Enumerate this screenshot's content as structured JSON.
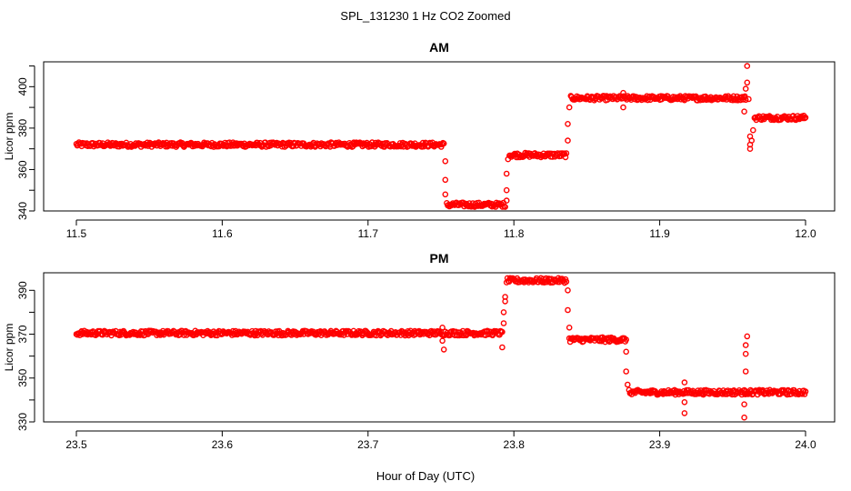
{
  "figure": {
    "title": "SPL_131230  1 Hz CO2 Zoomed",
    "xlabel": "Hour of Day (UTC)",
    "marker_color": "#ff0000"
  },
  "chart_data": [
    {
      "type": "scatter",
      "title": "AM",
      "ylabel": "Licor ppm",
      "xlabel": "Hour of Day (UTC)",
      "xlim": [
        11.5,
        12.0
      ],
      "ylim": [
        340,
        412
      ],
      "xticks": [
        "11.5",
        "11.6",
        "11.7",
        "11.8",
        "11.9",
        "12.0"
      ],
      "yticks": [
        "340",
        "360",
        "380",
        "400"
      ],
      "grid": false,
      "segments": [
        {
          "x_start": 11.5,
          "x_end": 11.752,
          "y": 372
        },
        {
          "x_start": 11.754,
          "x_end": 11.794,
          "y": 343
        },
        {
          "x_start": 11.797,
          "x_end": 11.836,
          "y": 367
        },
        {
          "x_start": 11.839,
          "x_end": 11.959,
          "y": 394.5
        },
        {
          "x_start": 11.965,
          "x_end": 12.0,
          "y": 385
        }
      ],
      "outliers": [
        {
          "x": 11.753,
          "y": 364
        },
        {
          "x": 11.753,
          "y": 355
        },
        {
          "x": 11.753,
          "y": 348
        },
        {
          "x": 11.795,
          "y": 345
        },
        {
          "x": 11.795,
          "y": 350
        },
        {
          "x": 11.795,
          "y": 358
        },
        {
          "x": 11.796,
          "y": 365
        },
        {
          "x": 11.837,
          "y": 374
        },
        {
          "x": 11.837,
          "y": 382
        },
        {
          "x": 11.838,
          "y": 390
        },
        {
          "x": 11.875,
          "y": 390
        },
        {
          "x": 11.875,
          "y": 397
        },
        {
          "x": 11.958,
          "y": 388
        },
        {
          "x": 11.959,
          "y": 399
        },
        {
          "x": 11.96,
          "y": 402
        },
        {
          "x": 11.96,
          "y": 410
        },
        {
          "x": 11.961,
          "y": 394
        },
        {
          "x": 11.962,
          "y": 376
        },
        {
          "x": 11.962,
          "y": 372
        },
        {
          "x": 11.962,
          "y": 370
        },
        {
          "x": 11.963,
          "y": 374
        },
        {
          "x": 11.964,
          "y": 379
        }
      ]
    },
    {
      "type": "scatter",
      "title": "PM",
      "ylabel": "Licor ppm",
      "xlabel": "Hour of Day (UTC)",
      "xlim": [
        23.5,
        24.0
      ],
      "ylim": [
        330,
        398
      ],
      "xticks": [
        "23.5",
        "23.6",
        "23.7",
        "23.8",
        "23.9",
        "24.0"
      ],
      "yticks": [
        "330",
        "350",
        "370",
        "390"
      ],
      "grid": false,
      "segments": [
        {
          "x_start": 23.5,
          "x_end": 23.792,
          "y": 370.5
        },
        {
          "x_start": 23.795,
          "x_end": 23.836,
          "y": 394.5
        },
        {
          "x_start": 23.838,
          "x_end": 23.877,
          "y": 367.5
        },
        {
          "x_start": 23.879,
          "x_end": 24.0,
          "y": 343.5
        }
      ],
      "outliers": [
        {
          "x": 23.751,
          "y": 373
        },
        {
          "x": 23.751,
          "y": 367
        },
        {
          "x": 23.752,
          "y": 363
        },
        {
          "x": 23.792,
          "y": 364
        },
        {
          "x": 23.793,
          "y": 375
        },
        {
          "x": 23.793,
          "y": 380
        },
        {
          "x": 23.794,
          "y": 385
        },
        {
          "x": 23.794,
          "y": 387
        },
        {
          "x": 23.837,
          "y": 390
        },
        {
          "x": 23.837,
          "y": 381
        },
        {
          "x": 23.838,
          "y": 373
        },
        {
          "x": 23.877,
          "y": 362
        },
        {
          "x": 23.877,
          "y": 353
        },
        {
          "x": 23.878,
          "y": 347
        },
        {
          "x": 23.917,
          "y": 348
        },
        {
          "x": 23.917,
          "y": 339
        },
        {
          "x": 23.917,
          "y": 334
        },
        {
          "x": 23.958,
          "y": 332
        },
        {
          "x": 23.958,
          "y": 338
        },
        {
          "x": 23.959,
          "y": 344
        },
        {
          "x": 23.959,
          "y": 353
        },
        {
          "x": 23.959,
          "y": 361
        },
        {
          "x": 23.959,
          "y": 365
        },
        {
          "x": 23.96,
          "y": 369
        }
      ]
    }
  ]
}
